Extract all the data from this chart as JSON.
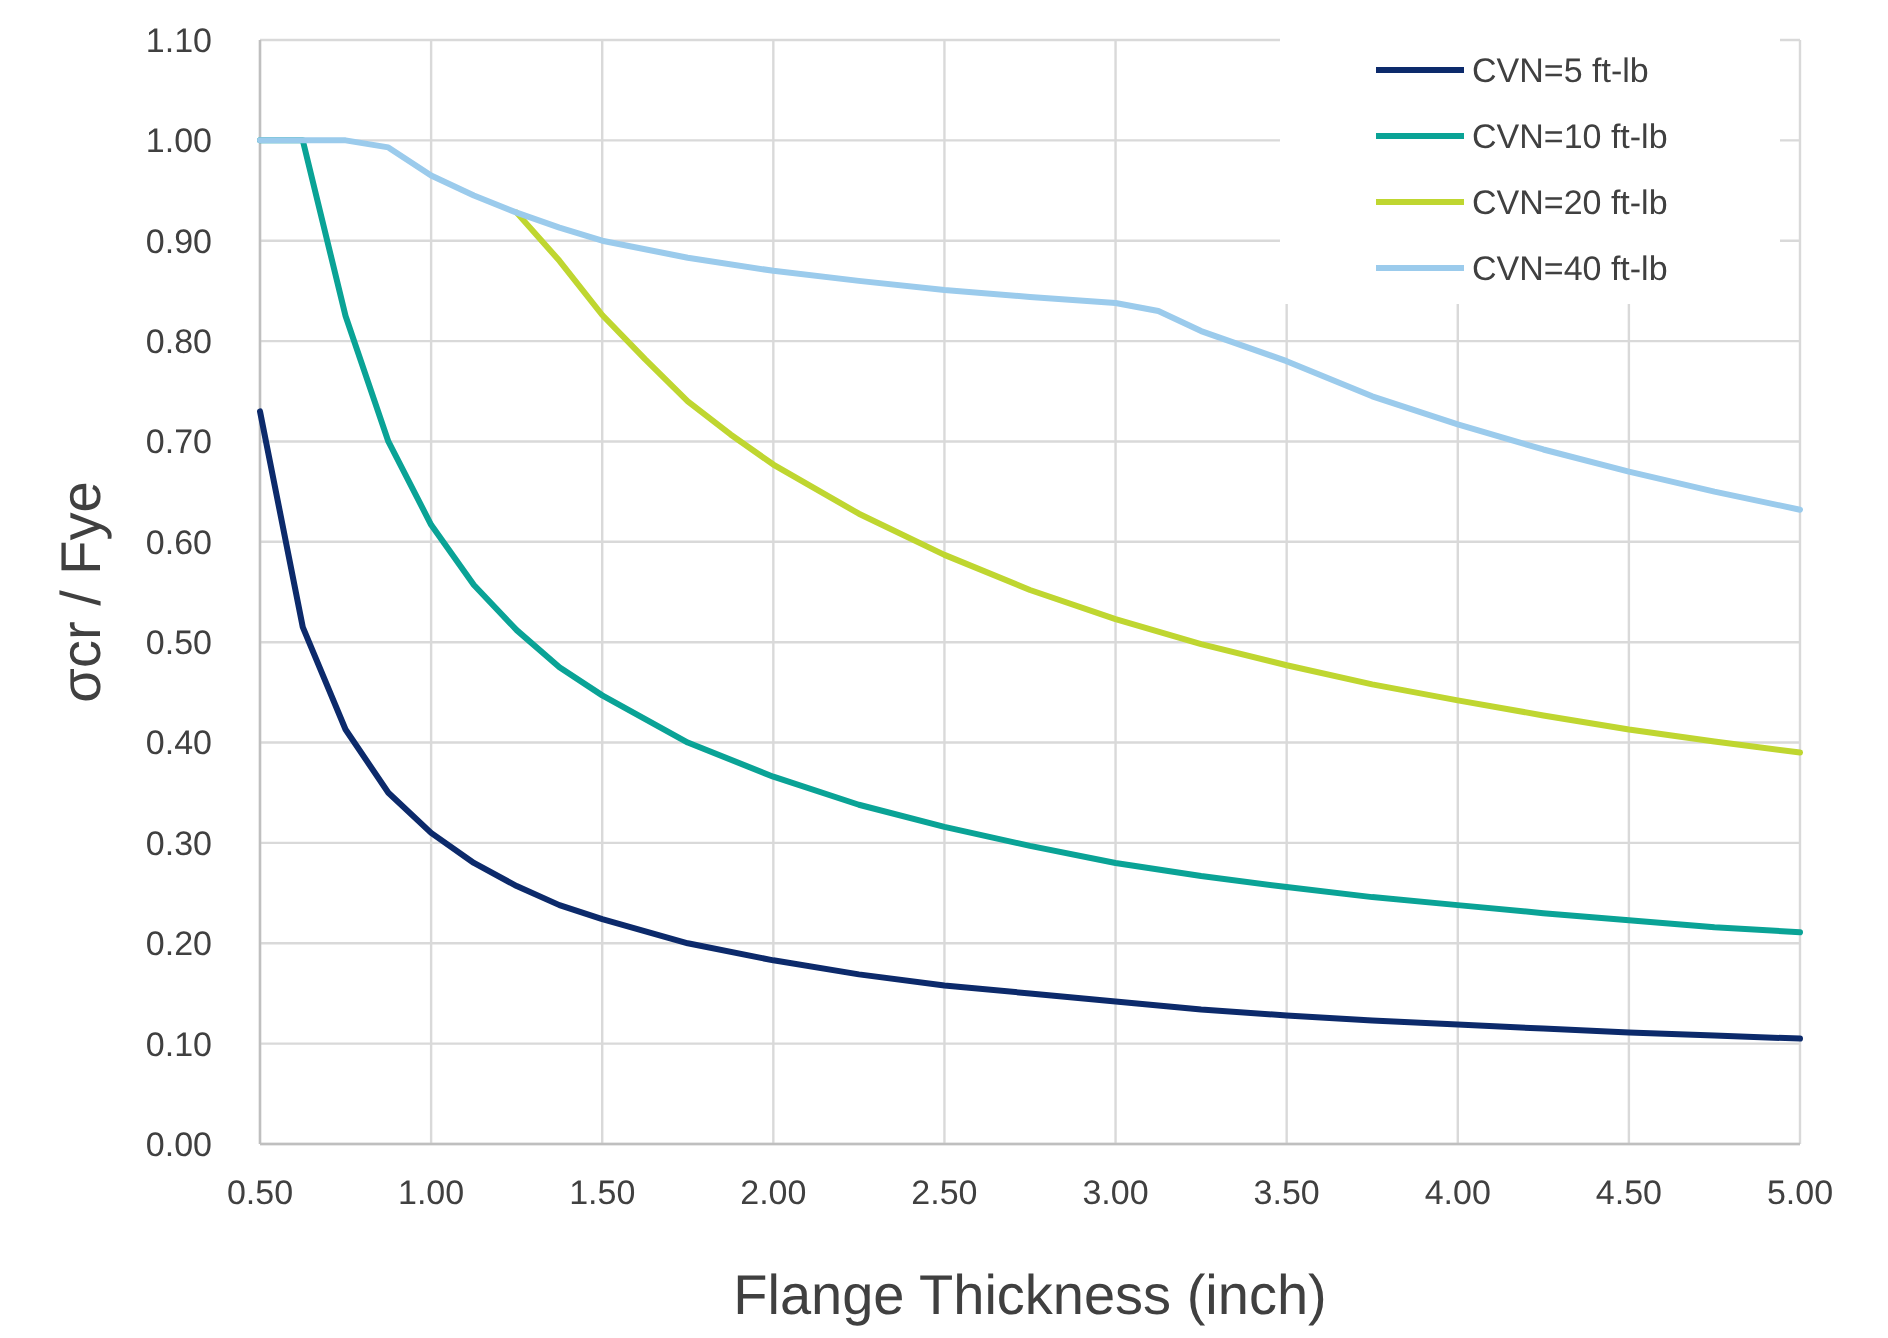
{
  "chart_data": {
    "type": "line",
    "xlabel": "Flange Thickness (inch)",
    "ylabel": "σcr / Fye",
    "xlim": [
      0.5,
      5
    ],
    "xticks": [
      {
        "value": 0.5,
        "label": "0.50"
      },
      {
        "value": 1,
        "label": "1.00"
      },
      {
        "value": 1.5,
        "label": "1.50"
      },
      {
        "value": 2,
        "label": "2.00"
      },
      {
        "value": 2.5,
        "label": "2.50"
      },
      {
        "value": 3,
        "label": "3.00"
      },
      {
        "value": 3.5,
        "label": "3.50"
      },
      {
        "value": 4,
        "label": "4.00"
      },
      {
        "value": 4.5,
        "label": "4.50"
      },
      {
        "value": 5,
        "label": "5.00"
      }
    ],
    "ylim": [
      0,
      1.1
    ],
    "yticks": [
      {
        "value": 0,
        "label": "0.00"
      },
      {
        "value": 0.1,
        "label": "0.10"
      },
      {
        "value": 0.2,
        "label": "0.20"
      },
      {
        "value": 0.3,
        "label": "0.30"
      },
      {
        "value": 0.4,
        "label": "0.40"
      },
      {
        "value": 0.5,
        "label": "0.50"
      },
      {
        "value": 0.6,
        "label": "0.60"
      },
      {
        "value": 0.7,
        "label": "0.70"
      },
      {
        "value": 0.8,
        "label": "0.80"
      },
      {
        "value": 0.9,
        "label": "0.90"
      },
      {
        "value": 1,
        "label": "1.00"
      },
      {
        "value": 1.1,
        "label": "1.10"
      }
    ],
    "grid": true,
    "legend": "top right",
    "marker": "none",
    "line_style": "solid",
    "series": [
      {
        "name": "CVN=5 ft-lb",
        "color": "#0c2a6b",
        "x": [
          0.5,
          0.625,
          0.75,
          0.875,
          1,
          1.125,
          1.25,
          1.375,
          1.5,
          1.75,
          2,
          2.25,
          2.5,
          2.75,
          3,
          3.25,
          3.5,
          3.75,
          4,
          4.25,
          4.5,
          4.75,
          5
        ],
        "values": [
          0.73,
          0.515,
          0.413,
          0.35,
          0.31,
          0.28,
          0.257,
          0.238,
          0.224,
          0.2,
          0.183,
          0.169,
          0.158,
          0.15,
          0.142,
          0.134,
          0.128,
          0.123,
          0.119,
          0.115,
          0.111,
          0.108,
          0.105
        ]
      },
      {
        "name": "CVN=10 ft-lb",
        "color": "#0aa396",
        "x": [
          0.5,
          0.625,
          0.75,
          0.875,
          1,
          1.125,
          1.25,
          1.375,
          1.5,
          1.75,
          2,
          2.25,
          2.5,
          2.75,
          3,
          3.25,
          3.5,
          3.75,
          4,
          4.25,
          4.5,
          4.75,
          5
        ],
        "values": [
          1,
          1,
          0.825,
          0.7,
          0.617,
          0.557,
          0.512,
          0.475,
          0.447,
          0.4,
          0.366,
          0.338,
          0.316,
          0.297,
          0.28,
          0.267,
          0.256,
          0.246,
          0.238,
          0.23,
          0.223,
          0.216,
          0.211
        ]
      },
      {
        "name": "CVN=20 ft-lb",
        "color": "#bfd630",
        "x": [
          1.25,
          1.375,
          1.5,
          1.625,
          1.75,
          1.875,
          2,
          2.25,
          2.5,
          2.75,
          3,
          3.25,
          3.5,
          3.75,
          4,
          4.25,
          4.5,
          4.75,
          5
        ],
        "values": [
          0.928,
          0.88,
          0.826,
          0.782,
          0.74,
          0.707,
          0.677,
          0.628,
          0.587,
          0.552,
          0.523,
          0.498,
          0.477,
          0.458,
          0.442,
          0.427,
          0.413,
          0.401,
          0.39
        ]
      },
      {
        "name": "CVN=40 ft-lb",
        "color": "#9bcbec",
        "x": [
          0.5,
          0.625,
          0.75,
          0.875,
          1,
          1.125,
          1.25,
          1.375,
          1.5,
          1.75,
          2,
          2.25,
          2.5,
          2.75,
          3,
          3.125,
          3.25,
          3.5,
          3.75,
          4,
          4.25,
          4.5,
          4.75,
          5
        ],
        "values": [
          1,
          1,
          1,
          0.993,
          0.965,
          0.945,
          0.928,
          0.913,
          0.9,
          0.883,
          0.87,
          0.86,
          0.851,
          0.844,
          0.838,
          0.83,
          0.81,
          0.78,
          0.745,
          0.717,
          0.692,
          0.67,
          0.65,
          0.632
        ]
      }
    ]
  }
}
